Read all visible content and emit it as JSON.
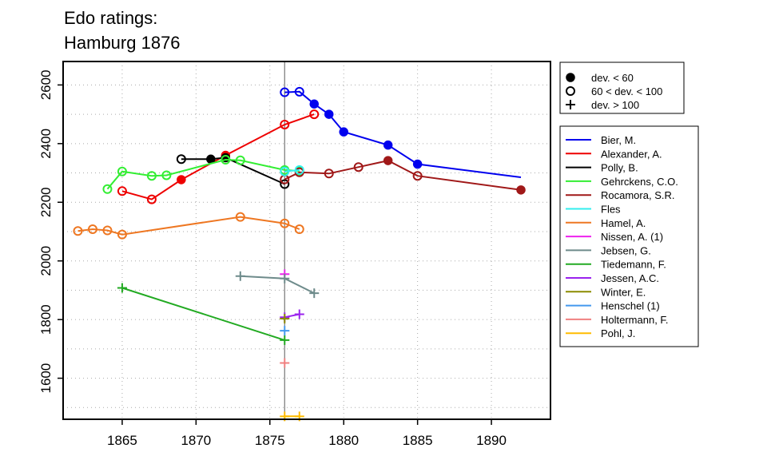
{
  "chart_data": {
    "type": "line",
    "title_lines": [
      "Edo ratings:",
      "Hamburg 1876"
    ],
    "xlabel": "",
    "ylabel": "",
    "xlim": [
      1861,
      1894
    ],
    "ylim": [
      1460,
      2680
    ],
    "x_ticks": [
      1865,
      1870,
      1875,
      1880,
      1885,
      1890
    ],
    "y_ticks": [
      1600,
      1800,
      2000,
      2200,
      2400,
      2600
    ],
    "grid": "dotted",
    "reference_line_x": 1876,
    "marker_legend": [
      {
        "marker": "filled",
        "label": "dev. < 60"
      },
      {
        "marker": "open",
        "label": "60 < dev. < 100"
      },
      {
        "marker": "plus",
        "label": "dev. > 100"
      }
    ],
    "legend_position": "right",
    "series": [
      {
        "name": "Bier, M.",
        "color": "#0000ee",
        "points": [
          [
            1876,
            2575,
            "open"
          ],
          [
            1877,
            2577,
            "open"
          ],
          [
            1878,
            2535,
            "filled"
          ],
          [
            1879,
            2500,
            "filled"
          ],
          [
            1880,
            2440,
            "filled"
          ],
          [
            1883,
            2395,
            "filled"
          ],
          [
            1885,
            2330,
            "filled"
          ],
          [
            1892,
            2285,
            "none"
          ]
        ]
      },
      {
        "name": "Alexander, A.",
        "color": "#ee0000",
        "points": [
          [
            1865,
            2238,
            "open"
          ],
          [
            1867,
            2210,
            "open"
          ],
          [
            1869,
            2277,
            "filled"
          ],
          [
            1872,
            2360,
            "filled"
          ],
          [
            1876,
            2465,
            "open"
          ],
          [
            1878,
            2500,
            "open"
          ]
        ]
      },
      {
        "name": "Polly, B.",
        "color": "#000000",
        "points": [
          [
            1869,
            2347,
            "open"
          ],
          [
            1871,
            2347,
            "filled"
          ],
          [
            1872,
            2352,
            "filled"
          ],
          [
            1876,
            2262,
            "open"
          ]
        ]
      },
      {
        "name": "Gehrckens, C.O.",
        "color": "#33ee33",
        "points": [
          [
            1864,
            2245,
            "open"
          ],
          [
            1865,
            2305,
            "open"
          ],
          [
            1867,
            2290,
            "open"
          ],
          [
            1868,
            2292,
            "open"
          ],
          [
            1872,
            2345,
            "open"
          ],
          [
            1873,
            2343,
            "open"
          ],
          [
            1876,
            2310,
            "open"
          ],
          [
            1877,
            2307,
            "open"
          ]
        ]
      },
      {
        "name": "Rocamora, S.R.",
        "color": "#a01818",
        "points": [
          [
            1876,
            2278,
            "open"
          ],
          [
            1877,
            2302,
            "open"
          ],
          [
            1879,
            2298,
            "open"
          ],
          [
            1881,
            2320,
            "open"
          ],
          [
            1883,
            2342,
            "filled"
          ],
          [
            1885,
            2290,
            "open"
          ],
          [
            1892,
            2242,
            "filled"
          ]
        ]
      },
      {
        "name": "Fles",
        "color": "#33eeee",
        "points": [
          [
            1876,
            2305,
            "open"
          ],
          [
            1877,
            2310,
            "open"
          ]
        ]
      },
      {
        "name": "Hamel, A.",
        "color": "#ee7722",
        "points": [
          [
            1862,
            2102,
            "open"
          ],
          [
            1863,
            2108,
            "open"
          ],
          [
            1864,
            2104,
            "open"
          ],
          [
            1865,
            2090,
            "open"
          ],
          [
            1873,
            2150,
            "open"
          ],
          [
            1876,
            2128,
            "open"
          ],
          [
            1877,
            2108,
            "open"
          ]
        ]
      },
      {
        "name": "Nissen, A. (1)",
        "color": "#ee22ee",
        "points": [
          [
            1876,
            1955,
            "plus"
          ]
        ]
      },
      {
        "name": "Jebsen, G.",
        "color": "#6e8b8b",
        "points": [
          [
            1873,
            1948,
            "plus"
          ],
          [
            1876,
            1940,
            "plus"
          ],
          [
            1878,
            1890,
            "plus"
          ]
        ]
      },
      {
        "name": "Tiedemann, F.",
        "color": "#22aa22",
        "points": [
          [
            1865,
            1908,
            "plus"
          ],
          [
            1876,
            1730,
            "plus"
          ]
        ]
      },
      {
        "name": "Jessen, A.C.",
        "color": "#9a22ee",
        "points": [
          [
            1876,
            1808,
            "plus"
          ],
          [
            1877,
            1818,
            "plus"
          ]
        ]
      },
      {
        "name": "Winter, E.",
        "color": "#8b8b00",
        "points": [
          [
            1876,
            1803,
            "plus"
          ]
        ]
      },
      {
        "name": "Henschel (1)",
        "color": "#4499ee",
        "points": [
          [
            1876,
            1762,
            "plus"
          ]
        ]
      },
      {
        "name": "Holtermann, F.",
        "color": "#f08080",
        "points": [
          [
            1876,
            1652,
            "plus"
          ]
        ]
      },
      {
        "name": "Pohl, J.",
        "color": "#ffbb00",
        "points": [
          [
            1876,
            1470,
            "plus"
          ],
          [
            1877,
            1470,
            "plus"
          ]
        ]
      }
    ]
  }
}
